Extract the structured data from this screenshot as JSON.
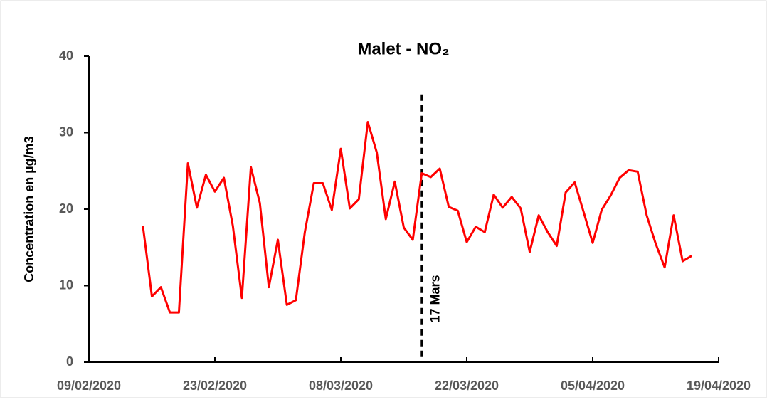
{
  "chart_data": {
    "type": "line",
    "title": "Malet - NO₂",
    "ylabel": "Concentration en µg/m3",
    "x": [
      "15/02/2020",
      "16/02/2020",
      "17/02/2020",
      "18/02/2020",
      "19/02/2020",
      "20/02/2020",
      "21/02/2020",
      "22/02/2020",
      "23/02/2020",
      "24/02/2020",
      "25/02/2020",
      "26/02/2020",
      "27/02/2020",
      "28/02/2020",
      "29/02/2020",
      "01/03/2020",
      "02/03/2020",
      "03/03/2020",
      "04/03/2020",
      "05/03/2020",
      "06/03/2020",
      "07/03/2020",
      "08/03/2020",
      "09/03/2020",
      "10/03/2020",
      "11/03/2020",
      "12/03/2020",
      "13/03/2020",
      "14/03/2020",
      "15/03/2020",
      "16/03/2020",
      "17/03/2020",
      "18/03/2020",
      "19/03/2020",
      "20/03/2020",
      "21/03/2020",
      "22/03/2020",
      "23/03/2020",
      "24/03/2020",
      "25/03/2020",
      "26/03/2020",
      "27/03/2020",
      "28/03/2020",
      "29/03/2020",
      "30/03/2020",
      "31/03/2020",
      "01/04/2020",
      "02/04/2020",
      "03/04/2020",
      "04/04/2020",
      "05/04/2020",
      "06/04/2020",
      "07/04/2020",
      "08/04/2020",
      "09/04/2020",
      "10/04/2020",
      "11/04/2020",
      "12/04/2020",
      "13/04/2020",
      "14/04/2020",
      "15/04/2020",
      "16/04/2020"
    ],
    "series": [
      {
        "color": "#ff0000",
        "values": [
          17.8,
          8.6,
          9.8,
          6.5,
          6.5,
          26.0,
          20.2,
          24.5,
          22.3,
          24.1,
          17.8,
          8.4,
          25.5,
          20.8,
          9.8,
          16.0,
          7.5,
          8.1,
          17.0,
          23.4,
          23.4,
          19.9,
          27.9,
          20.1,
          21.3,
          31.4,
          27.4,
          18.7,
          23.6,
          17.6,
          16.0,
          24.7,
          24.2,
          25.3,
          20.3,
          19.8,
          15.7,
          17.7,
          17.0,
          21.9,
          20.2,
          21.6,
          20.1,
          14.4,
          19.2,
          17.0,
          15.2,
          22.2,
          23.5,
          19.6,
          15.6,
          19.9,
          21.8,
          24.1,
          25.1,
          24.9,
          19.2,
          15.5,
          12.4,
          19.2,
          13.2,
          13.9
        ]
      }
    ],
    "xlim": [
      "09/02/2020",
      "19/04/2020"
    ],
    "xticks": [
      "09/02/2020",
      "23/02/2020",
      "08/03/2020",
      "22/03/2020",
      "05/04/2020",
      "19/04/2020"
    ],
    "ylim": [
      0,
      40
    ],
    "yticks": [
      0,
      10,
      20,
      30,
      40
    ],
    "grid": false,
    "vline": {
      "x": "17/03/2020",
      "y": [
        0,
        35
      ],
      "label": "17 Mars"
    }
  }
}
